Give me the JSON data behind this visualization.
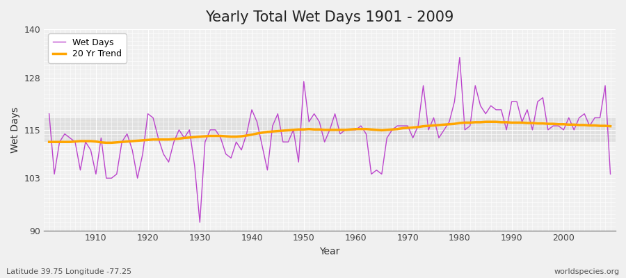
{
  "title": "Yearly Total Wet Days 1901 - 2009",
  "xlabel": "Year",
  "ylabel": "Wet Days",
  "footer_left": "Latitude 39.75 Longitude -77.25",
  "footer_right": "worldspecies.org",
  "ylim": [
    90,
    140
  ],
  "yticks": [
    90,
    103,
    115,
    128,
    140
  ],
  "xlim_min": 1901,
  "xlim_max": 2009,
  "wet_days_color": "#bb44cc",
  "trend_color": "#ffa500",
  "bg_color": "#f0f0f0",
  "bg_band_color": "#e0e0e0",
  "years": [
    1901,
    1902,
    1903,
    1904,
    1905,
    1906,
    1907,
    1908,
    1909,
    1910,
    1911,
    1912,
    1913,
    1914,
    1915,
    1916,
    1917,
    1918,
    1919,
    1920,
    1921,
    1922,
    1923,
    1924,
    1925,
    1926,
    1927,
    1928,
    1929,
    1930,
    1931,
    1932,
    1933,
    1934,
    1935,
    1936,
    1937,
    1938,
    1939,
    1940,
    1941,
    1942,
    1943,
    1944,
    1945,
    1946,
    1947,
    1948,
    1949,
    1950,
    1951,
    1952,
    1953,
    1954,
    1955,
    1956,
    1957,
    1958,
    1959,
    1960,
    1961,
    1962,
    1963,
    1964,
    1965,
    1966,
    1967,
    1968,
    1969,
    1970,
    1971,
    1972,
    1973,
    1974,
    1975,
    1976,
    1977,
    1978,
    1979,
    1980,
    1981,
    1982,
    1983,
    1984,
    1985,
    1986,
    1987,
    1988,
    1989,
    1990,
    1991,
    1992,
    1993,
    1994,
    1995,
    1996,
    1997,
    1998,
    1999,
    2000,
    2001,
    2002,
    2003,
    2004,
    2005,
    2006,
    2007,
    2008,
    2009
  ],
  "wet_days": [
    119,
    104,
    112,
    114,
    113,
    112,
    105,
    112,
    110,
    104,
    113,
    103,
    103,
    104,
    112,
    114,
    110,
    103,
    109,
    119,
    118,
    113,
    109,
    107,
    112,
    115,
    113,
    115,
    106,
    92,
    112,
    115,
    115,
    113,
    109,
    108,
    112,
    110,
    114,
    120,
    117,
    111,
    105,
    116,
    119,
    112,
    112,
    115,
    107,
    127,
    117,
    119,
    117,
    112,
    115,
    119,
    114,
    115,
    115,
    115,
    116,
    114,
    104,
    105,
    104,
    113,
    115,
    116,
    116,
    116,
    113,
    116,
    126,
    115,
    118,
    113,
    115,
    117,
    122,
    133,
    115,
    116,
    126,
    121,
    119,
    121,
    120,
    120,
    115,
    122,
    122,
    117,
    120,
    115,
    122,
    123,
    115,
    116,
    116,
    115,
    118,
    115,
    118,
    119,
    116,
    118,
    118,
    126,
    104
  ],
  "trend": [
    112.0,
    112.0,
    112.0,
    112.0,
    112.0,
    112.1,
    112.2,
    112.2,
    112.2,
    112.1,
    111.9,
    111.8,
    111.8,
    111.9,
    112.0,
    112.1,
    112.2,
    112.3,
    112.4,
    112.5,
    112.6,
    112.6,
    112.6,
    112.6,
    112.7,
    112.8,
    113.0,
    113.1,
    113.2,
    113.3,
    113.4,
    113.5,
    113.5,
    113.5,
    113.4,
    113.3,
    113.3,
    113.4,
    113.6,
    113.8,
    114.1,
    114.3,
    114.5,
    114.6,
    114.7,
    114.8,
    114.9,
    115.0,
    115.1,
    115.1,
    115.2,
    115.1,
    115.1,
    115.0,
    115.0,
    115.0,
    115.0,
    115.0,
    115.1,
    115.2,
    115.2,
    115.2,
    115.1,
    115.0,
    114.9,
    115.0,
    115.1,
    115.2,
    115.4,
    115.5,
    115.6,
    115.7,
    115.9,
    116.0,
    116.1,
    116.2,
    116.3,
    116.4,
    116.5,
    116.7,
    116.8,
    116.8,
    116.9,
    116.9,
    117.0,
    117.0,
    117.0,
    116.9,
    116.9,
    116.8,
    116.8,
    116.8,
    116.7,
    116.7,
    116.6,
    116.6,
    116.5,
    116.5,
    116.4,
    116.4,
    116.3,
    116.3,
    116.2,
    116.2,
    116.1,
    116.1,
    116.0,
    116.0,
    115.9
  ]
}
